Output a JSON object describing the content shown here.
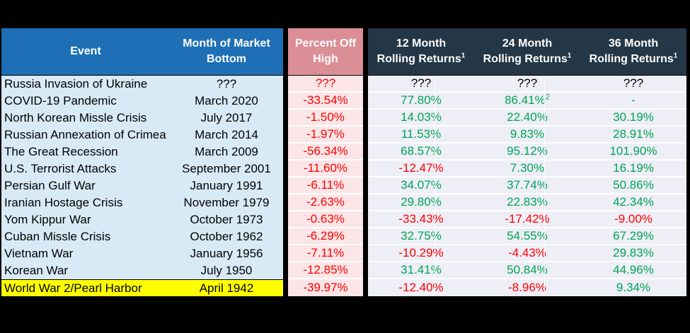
{
  "colors": {
    "background": "#000000",
    "header_blue": "#1E6FB5",
    "header_navy": "#243746",
    "header_pink": "#DC8E96",
    "header_text": "#FFFFFF",
    "cell_blue": "#D9EAF7",
    "cell_pink": "#FBE5E6",
    "cell_lavender": "#EDEEF6",
    "highlight_yellow": "#FFFF00",
    "positive_green": "#00A455",
    "negative_red": "#FF0000",
    "neutral_text": "#000000"
  },
  "chart_data": {
    "type": "table",
    "columns": [
      {
        "id": "event",
        "label": "Event"
      },
      {
        "id": "month",
        "label": "Month of Market Bottom"
      },
      {
        "id": "pct_off_high",
        "label": "Percent Off High"
      },
      {
        "id": "r12",
        "label": "12 Month Rolling Returns",
        "footnote": "1"
      },
      {
        "id": "r24",
        "label": "24 Month Rolling Returns",
        "footnote": "1"
      },
      {
        "id": "r36",
        "label": "36 Month Rolling Returns",
        "footnote": "1"
      }
    ],
    "rows": [
      {
        "event": "Russia Invasion of Ukraine",
        "month": "???",
        "pct_off_high": "???",
        "r12": "???",
        "r24": "???",
        "r36": "???"
      },
      {
        "event": "COVID-19 Pandemic",
        "month": "March 2020",
        "pct_off_high": "-33.54%",
        "r12": "77.80%",
        "r24": "86.41%",
        "r24_footnote": "2",
        "r36": "-"
      },
      {
        "event": "North Korean Missle Crisis",
        "month": "July 2017",
        "pct_off_high": "-1.50%",
        "r12": "14.03%",
        "r24": "22.40%",
        "r36": "30.19%"
      },
      {
        "event": "Russian Annexation of Crimea",
        "month": "March 2014",
        "pct_off_high": "-1.97%",
        "r12": "11.53%",
        "r24": "9.83%",
        "r36": "28.91%"
      },
      {
        "event": "The Great Recession",
        "month": "March 2009",
        "pct_off_high": "-56.34%",
        "r12": "68.57%",
        "r24": "95.12%",
        "r36": "101.90%"
      },
      {
        "event": "U.S. Terrorist Attacks",
        "month": "September 2001",
        "pct_off_high": "-11.60%",
        "r12": "-12.47%",
        "r24": "7.30%",
        "r36": "16.19%"
      },
      {
        "event": "Persian Gulf War",
        "month": "January 1991",
        "pct_off_high": "-6.11%",
        "r12": "34.07%",
        "r24": "37.74%",
        "r36": "50.86%"
      },
      {
        "event": "Iranian Hostage Crisis",
        "month": "November 1979",
        "pct_off_high": "-2.63%",
        "r12": "29.80%",
        "r24": "22.83%",
        "r36": "42.34%"
      },
      {
        "event": "Yom Kippur War",
        "month": "October 1973",
        "pct_off_high": "-0.63%",
        "r12": "-33.43%",
        "r24": "-17.42%",
        "r36": "-9.00%"
      },
      {
        "event": "Cuban Missle Crisis",
        "month": "October 1962",
        "pct_off_high": "-6.29%",
        "r12": "32.75%",
        "r24": "54.55%",
        "r36": "67.29%"
      },
      {
        "event": "Vietnam War",
        "month": "January 1956",
        "pct_off_high": "-7.11%",
        "r12": "-10.29%",
        "r24": "-4.43%",
        "r36": "29.83%"
      },
      {
        "event": "Korean War",
        "month": "July 1950",
        "pct_off_high": "-12.85%",
        "r12": "31.41%",
        "r24": "50.84%",
        "r36": "44.96%"
      },
      {
        "event": "World War 2/Pearl Harbor",
        "month": "April 1942",
        "pct_off_high": "-39.97%",
        "r12": "-12.40%",
        "r24": "-8.96%",
        "r36": "9.34%",
        "highlighted": true
      }
    ]
  }
}
